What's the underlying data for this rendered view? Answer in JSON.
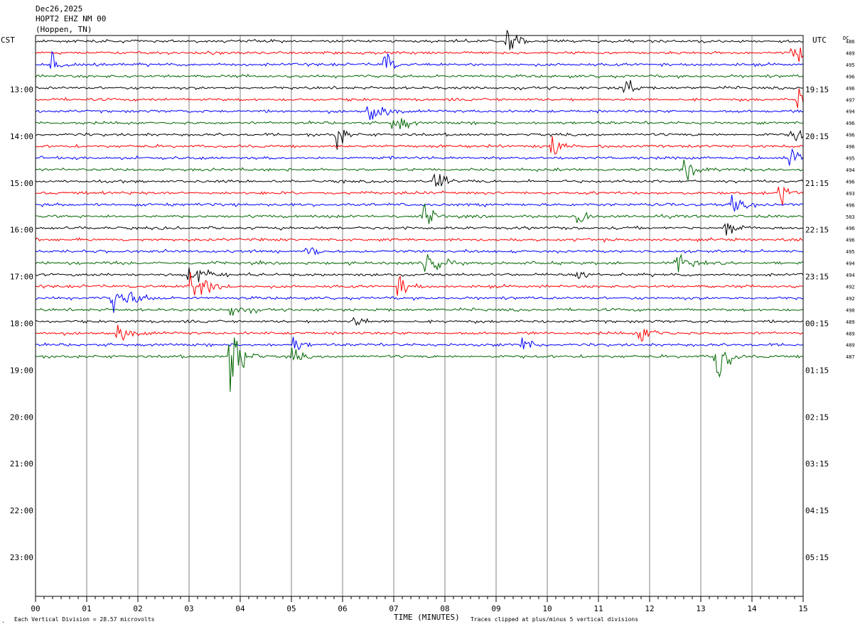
{
  "header": {
    "date": "Dec26,2025",
    "station": "HOPT2 EHZ NM 00",
    "location": "(Hoppen, TN)",
    "left_tz": "CST",
    "right_tz": "UTC",
    "dc_label": "DC"
  },
  "footer": {
    "x_axis_title": "TIME (MINUTES)",
    "scale_note": "Each Vertical Division =   28.57 microvolts",
    "clip_note": "Traces clipped at plus/minus 5 vertical divisions",
    "corner_mark": "."
  },
  "colors": {
    "black": "#000000",
    "red": "#ff0000",
    "blue": "#0000ff",
    "green": "#006600",
    "grid": "#808080"
  },
  "chart_data": {
    "type": "line",
    "x_range_minutes": [
      0,
      15
    ],
    "x_ticks": [
      "00",
      "01",
      "02",
      "03",
      "04",
      "05",
      "06",
      "07",
      "08",
      "09",
      "10",
      "11",
      "12",
      "13",
      "14",
      "15"
    ],
    "left_time_labels": [
      "13:00",
      "14:00",
      "15:00",
      "16:00",
      "17:00",
      "18:00",
      "19:00",
      "20:00",
      "21:00",
      "22:00",
      "23:00"
    ],
    "right_time_labels": [
      "19:15",
      "20:15",
      "21:15",
      "22:15",
      "23:15",
      "00:15",
      "01:15",
      "02:15",
      "03:15",
      "04:15",
      "05:15"
    ],
    "trace_colors": [
      "black",
      "red",
      "blue",
      "green"
    ],
    "traces": [
      {
        "color": "black",
        "dc": "486"
      },
      {
        "color": "red",
        "dc": "489"
      },
      {
        "color": "blue",
        "dc": "495"
      },
      {
        "color": "green",
        "dc": "496"
      },
      {
        "color": "black",
        "dc": "496"
      },
      {
        "color": "red",
        "dc": "497"
      },
      {
        "color": "blue",
        "dc": "494"
      },
      {
        "color": "green",
        "dc": "496"
      },
      {
        "color": "black",
        "dc": "496"
      },
      {
        "color": "red",
        "dc": "496"
      },
      {
        "color": "blue",
        "dc": "495"
      },
      {
        "color": "green",
        "dc": "494"
      },
      {
        "color": "black",
        "dc": "496"
      },
      {
        "color": "red",
        "dc": "493"
      },
      {
        "color": "blue",
        "dc": "496"
      },
      {
        "color": "green",
        "dc": "503"
      },
      {
        "color": "black",
        "dc": "496"
      },
      {
        "color": "red",
        "dc": "496"
      },
      {
        "color": "blue",
        "dc": "495"
      },
      {
        "color": "green",
        "dc": "494"
      },
      {
        "color": "black",
        "dc": "494"
      },
      {
        "color": "red",
        "dc": "492"
      },
      {
        "color": "blue",
        "dc": "492"
      },
      {
        "color": "green",
        "dc": "490"
      },
      {
        "color": "black",
        "dc": "489"
      },
      {
        "color": "red",
        "dc": "489"
      },
      {
        "color": "blue",
        "dc": "489"
      },
      {
        "color": "green",
        "dc": "487"
      }
    ],
    "events": [
      {
        "trace": 0,
        "minute": 9.2,
        "amplitude": 3.2,
        "duration": 0.4
      },
      {
        "trace": 1,
        "minute": 14.8,
        "amplitude": 2.0,
        "duration": 0.4
      },
      {
        "trace": 2,
        "minute": 6.8,
        "amplitude": 3.0,
        "duration": 0.3
      },
      {
        "trace": 2,
        "minute": 0.3,
        "amplitude": 1.5,
        "duration": 0.4
      },
      {
        "trace": 4,
        "minute": 11.5,
        "amplitude": 3.0,
        "duration": 0.3
      },
      {
        "trace": 5,
        "minute": 14.9,
        "amplitude": 2.0,
        "duration": 0.3
      },
      {
        "trace": 6,
        "minute": 6.5,
        "amplitude": 1.5,
        "duration": 0.8
      },
      {
        "trace": 7,
        "minute": 7.0,
        "amplitude": 1.8,
        "duration": 0.5
      },
      {
        "trace": 8,
        "minute": 5.9,
        "amplitude": 2.4,
        "duration": 0.3
      },
      {
        "trace": 8,
        "minute": 14.8,
        "amplitude": 2.0,
        "duration": 0.3
      },
      {
        "trace": 9,
        "minute": 10.1,
        "amplitude": 2.2,
        "duration": 0.3
      },
      {
        "trace": 10,
        "minute": 14.7,
        "amplitude": 2.5,
        "duration": 0.4
      },
      {
        "trace": 11,
        "minute": 12.7,
        "amplitude": 1.8,
        "duration": 0.5
      },
      {
        "trace": 12,
        "minute": 7.8,
        "amplitude": 2.0,
        "duration": 0.4
      },
      {
        "trace": 13,
        "minute": 14.5,
        "amplitude": 2.2,
        "duration": 0.4
      },
      {
        "trace": 14,
        "minute": 13.6,
        "amplitude": 1.6,
        "duration": 0.5
      },
      {
        "trace": 15,
        "minute": 7.6,
        "amplitude": 1.8,
        "duration": 0.4
      },
      {
        "trace": 15,
        "minute": 10.6,
        "amplitude": 2.0,
        "duration": 0.3
      },
      {
        "trace": 16,
        "minute": 13.5,
        "amplitude": 1.6,
        "duration": 0.5
      },
      {
        "trace": 18,
        "minute": 5.3,
        "amplitude": 1.2,
        "duration": 0.4
      },
      {
        "trace": 19,
        "minute": 7.6,
        "amplitude": 2.2,
        "duration": 0.6
      },
      {
        "trace": 19,
        "minute": 12.5,
        "amplitude": 1.6,
        "duration": 0.6
      },
      {
        "trace": 20,
        "minute": 3.0,
        "amplitude": 1.6,
        "duration": 0.8
      },
      {
        "trace": 20,
        "minute": 10.6,
        "amplitude": 1.8,
        "duration": 0.3
      },
      {
        "trace": 21,
        "minute": 3.0,
        "amplitude": 1.8,
        "duration": 1.0
      },
      {
        "trace": 21,
        "minute": 7.1,
        "amplitude": 1.4,
        "duration": 0.5
      },
      {
        "trace": 22,
        "minute": 1.5,
        "amplitude": 1.6,
        "duration": 1.0
      },
      {
        "trace": 23,
        "minute": 3.8,
        "amplitude": 1.2,
        "duration": 0.6
      },
      {
        "trace": 24,
        "minute": 6.2,
        "amplitude": 1.0,
        "duration": 0.4
      },
      {
        "trace": 25,
        "minute": 1.6,
        "amplitude": 1.2,
        "duration": 0.7
      },
      {
        "trace": 25,
        "minute": 11.8,
        "amplitude": 1.2,
        "duration": 0.7
      },
      {
        "trace": 26,
        "minute": 5.0,
        "amplitude": 1.4,
        "duration": 0.4
      },
      {
        "trace": 26,
        "minute": 9.5,
        "amplitude": 1.0,
        "duration": 0.5
      },
      {
        "trace": 27,
        "minute": 3.8,
        "amplitude": 5.0,
        "duration": 0.6
      },
      {
        "trace": 27,
        "minute": 13.3,
        "amplitude": 4.0,
        "duration": 0.5
      },
      {
        "trace": 27,
        "minute": 5.0,
        "amplitude": 1.2,
        "duration": 0.4
      }
    ]
  }
}
